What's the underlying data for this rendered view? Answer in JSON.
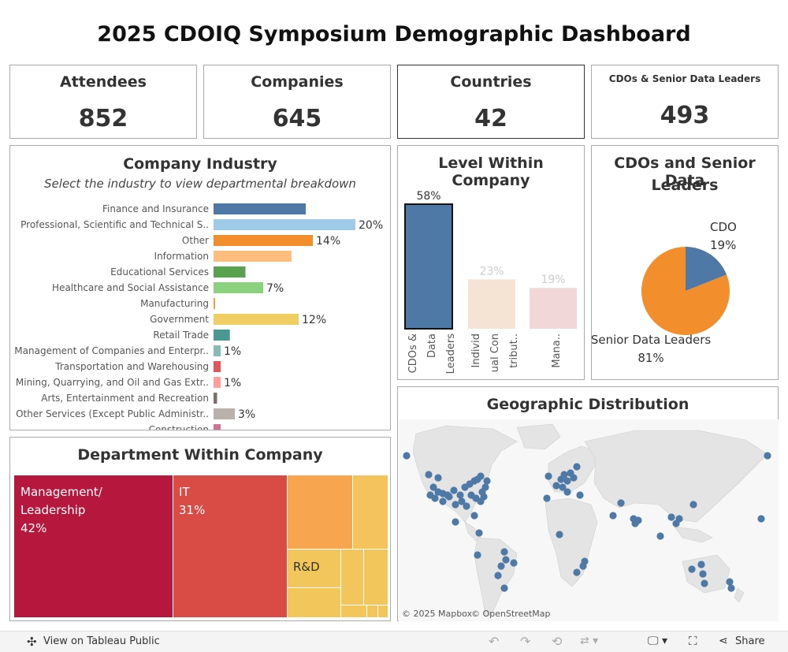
{
  "dashboard": {
    "title": "2025 CDOIQ Symposium Demographic Dashboard"
  },
  "kpis": [
    {
      "label": "Attendees",
      "value": "852"
    },
    {
      "label": "Companies",
      "value": "645"
    },
    {
      "label": "Countries",
      "value": "42"
    },
    {
      "label": "CDOs & Senior Data Leaders",
      "value": "493"
    }
  ],
  "industry": {
    "title": "Company Industry",
    "subtitle": "Select the industry to view departmental breakdown",
    "chart_data": {
      "type": "bar",
      "orientation": "horizontal",
      "title": "Company Industry",
      "categories": [
        "Finance and Insurance",
        "Professional, Scientific and Technical S..",
        "Other",
        "Information",
        "Educational Services",
        "Healthcare and Social Assistance",
        "Manufacturing",
        "Government",
        "Retail Trade",
        "Management of Companies and Enterpr..",
        "Transportation and Warehousing",
        "Mining, Quarrying, and Oil and Gas Extr..",
        "Arts, Entertainment and Recreation",
        "Other Services (Except Public Administr..",
        "Construction"
      ],
      "values": [
        13,
        20,
        14,
        11,
        4.5,
        7,
        0.2,
        12,
        2.3,
        1,
        1,
        1,
        0.5,
        3,
        1
      ],
      "labels": [
        "",
        "20%",
        "14%",
        "",
        "",
        "7%",
        "",
        "12%",
        "",
        "1%",
        "",
        "1%",
        "",
        "3%",
        ""
      ],
      "colors": [
        "#4e79a7",
        "#a0cbe8",
        "#f28e2b",
        "#ffbe7d",
        "#59a14f",
        "#8cd17d",
        "#f1a340",
        "#f1ce63",
        "#499894",
        "#86bcb6",
        "#e15759",
        "#ff9d9a",
        "#79706e",
        "#bab0ac",
        "#d37295"
      ],
      "xlim": [
        0,
        22
      ]
    }
  },
  "level": {
    "title": "Level Within Company",
    "chart_data": {
      "type": "bar",
      "title": "Level Within Company",
      "categories": [
        "CDOs & Data Leaders",
        "Individual Contributors",
        "Managers"
      ],
      "category_labels": [
        [
          "CDOs &",
          "Data",
          "Leaders"
        ],
        [
          "Individ",
          "ual Con",
          "tribut.."
        ],
        [
          "",
          "Mana.."
        ]
      ],
      "values": [
        58,
        23,
        19
      ],
      "labels": [
        "58%",
        "23%",
        "19%"
      ],
      "colors": [
        "#4e79a7",
        "#f5e4d4",
        "#f1d7d8"
      ],
      "ylim": [
        0,
        62
      ]
    }
  },
  "pie": {
    "title_line1": "CDOs and Senior Data",
    "title_line2": "Leaders",
    "chart_data": {
      "type": "pie",
      "title": "CDOs and Senior Data Leaders",
      "categories": [
        "CDO",
        "Senior Data Leaders"
      ],
      "values": [
        19,
        81
      ],
      "labels": [
        "19%",
        "81%"
      ],
      "colors": [
        "#4e79a7",
        "#f28e2b"
      ]
    }
  },
  "department": {
    "title": "Department Within Company",
    "chart_data": {
      "type": "treemap",
      "title": "Department Within Company",
      "categories": [
        "Management/ Leadership",
        "IT",
        "R&D"
      ],
      "values": [
        42,
        31,
        null
      ],
      "labels": [
        "42%",
        "31%",
        ""
      ],
      "colors": [
        "#b5173d",
        "#d94b45",
        "#f7a64f",
        "#f5c35b",
        "#f3c65c"
      ]
    },
    "label_mgmt_1": "Management/",
    "label_mgmt_2": "Leadership",
    "label_mgmt_pct": "42%",
    "label_it": "IT",
    "label_it_pct": "31%",
    "label_rd": "R&D"
  },
  "geo": {
    "title": "Geographic Distribution",
    "attribution_1": "© 2025 Mapbox",
    "attribution_2": "© OpenStreetMap",
    "dot_color": "#4e79a7",
    "land_color": "#e6e6e6"
  },
  "toolbar": {
    "view_label": "View on Tableau Public",
    "share_label": "Share"
  }
}
